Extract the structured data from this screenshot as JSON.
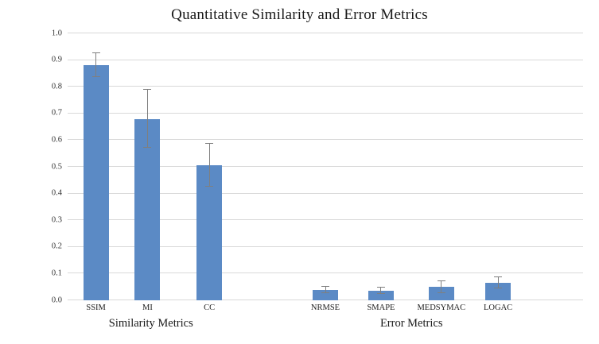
{
  "chart_data": {
    "type": "bar",
    "title": "Quantitative Similarity and Error Metrics",
    "xlabel": "",
    "ylabel": "",
    "ylim": [
      0,
      1.0
    ],
    "ytick_step": 0.1,
    "grid": true,
    "legend": "none",
    "bar_color": "#5b8ac5",
    "error_color": "#7f7f7f",
    "grid_color": "#d9d9d9",
    "categories": [
      "SSIM",
      "MI",
      "CC",
      "NRMSE",
      "SMAPE",
      "MEDSYMAC",
      "LOGAC"
    ],
    "values": [
      0.88,
      0.68,
      0.505,
      0.04,
      0.035,
      0.05,
      0.065
    ],
    "errors": [
      0.045,
      0.11,
      0.08,
      0.012,
      0.012,
      0.022,
      0.02
    ],
    "groups": [
      {
        "label": "Similarity Metrics",
        "bars": [
          {
            "label": "SSIM",
            "value": 0.88,
            "error": 0.045,
            "x_frac": 0.055
          },
          {
            "label": "MI",
            "value": 0.68,
            "error": 0.11,
            "x_frac": 0.155
          },
          {
            "label": "CC",
            "value": 0.505,
            "error": 0.08,
            "x_frac": 0.275
          }
        ]
      },
      {
        "label": "Error Metrics",
        "bars": [
          {
            "label": "NRMSE",
            "value": 0.04,
            "error": 0.012,
            "x_frac": 0.5
          },
          {
            "label": "SMAPE",
            "value": 0.035,
            "error": 0.012,
            "x_frac": 0.608
          },
          {
            "label": "MEDSYMAC",
            "value": 0.05,
            "error": 0.022,
            "x_frac": 0.725
          },
          {
            "label": "LOGAC",
            "value": 0.065,
            "error": 0.02,
            "x_frac": 0.835
          }
        ]
      }
    ]
  }
}
